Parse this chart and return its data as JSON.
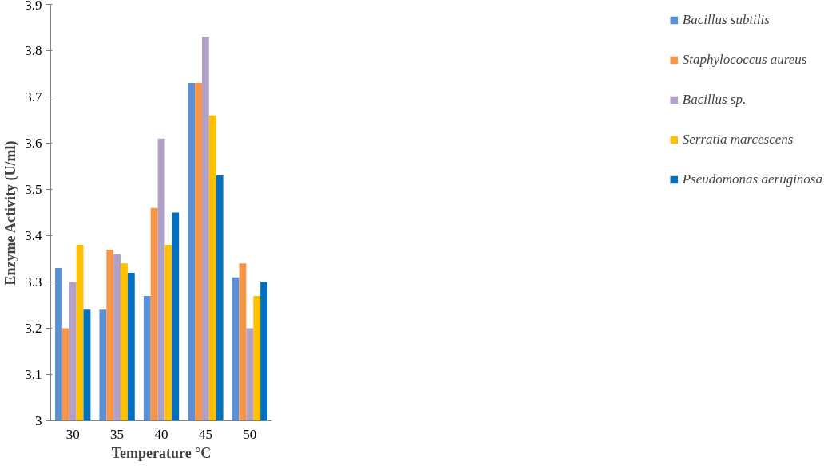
{
  "chart_data": {
    "type": "bar",
    "xlabel": "Temperature °C",
    "ylabel": "Enzyme Activity (U/ml)",
    "categories": [
      "30",
      "35",
      "40",
      "45",
      "50"
    ],
    "series": [
      {
        "name": "Bacillus subtilis",
        "color": "#5b8fd6",
        "values": [
          3.33,
          3.24,
          3.27,
          3.73,
          3.31
        ]
      },
      {
        "name": "Staphylococcus aureus",
        "color": "#f79646",
        "values": [
          3.2,
          3.37,
          3.46,
          3.73,
          3.34
        ]
      },
      {
        "name": "Bacillus sp.",
        "color": "#b1a0c7",
        "values": [
          3.3,
          3.36,
          3.61,
          3.83,
          3.2
        ]
      },
      {
        "name": "Serratia marcescens",
        "color": "#ffc000",
        "values": [
          3.38,
          3.34,
          3.38,
          3.66,
          3.27
        ]
      },
      {
        "name": "Pseudomonas aeruginosa",
        "color": "#0070c0",
        "values": [
          3.24,
          3.32,
          3.45,
          3.53,
          3.3
        ]
      }
    ],
    "ylim": [
      3,
      3.9
    ],
    "yticks": [
      3,
      3.1,
      3.2,
      3.3,
      3.4,
      3.5,
      3.6,
      3.7,
      3.8,
      3.9
    ],
    "grid": false,
    "legend": "right"
  }
}
